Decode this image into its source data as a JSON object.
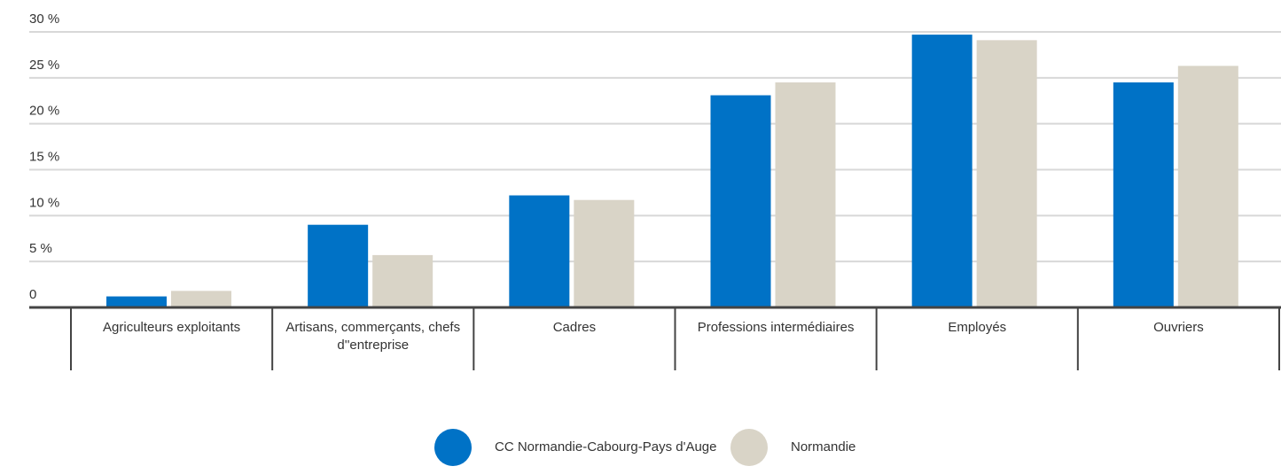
{
  "chart_data": {
    "type": "bar",
    "categories": [
      "Agriculteurs exploitants",
      "Artisans, commerçants, chefs d''entreprise",
      "Cadres",
      "Professions intermédiaires",
      "Employés",
      "Ouvriers"
    ],
    "series": [
      {
        "name": "CC Normandie-Cabourg-Pays d'Auge",
        "color": "#0072c6",
        "values": [
          1.2,
          9.0,
          12.2,
          23.1,
          29.7,
          24.5
        ]
      },
      {
        "name": "Normandie",
        "color": "#d9d4c7",
        "values": [
          1.8,
          5.7,
          11.7,
          24.5,
          29.1,
          26.3
        ]
      }
    ],
    "ylim": [
      0,
      30
    ],
    "yticks": [
      0,
      {
        "value": 5,
        "label": "5 %"
      },
      {
        "value": 10,
        "label": "10 %"
      },
      {
        "value": 15,
        "label": "15 %"
      },
      {
        "value": 20,
        "label": "20 %"
      },
      {
        "value": 25,
        "label": "25 %"
      },
      {
        "value": 30,
        "label": "30 %"
      }
    ],
    "grid": true,
    "legend": "bottom"
  }
}
